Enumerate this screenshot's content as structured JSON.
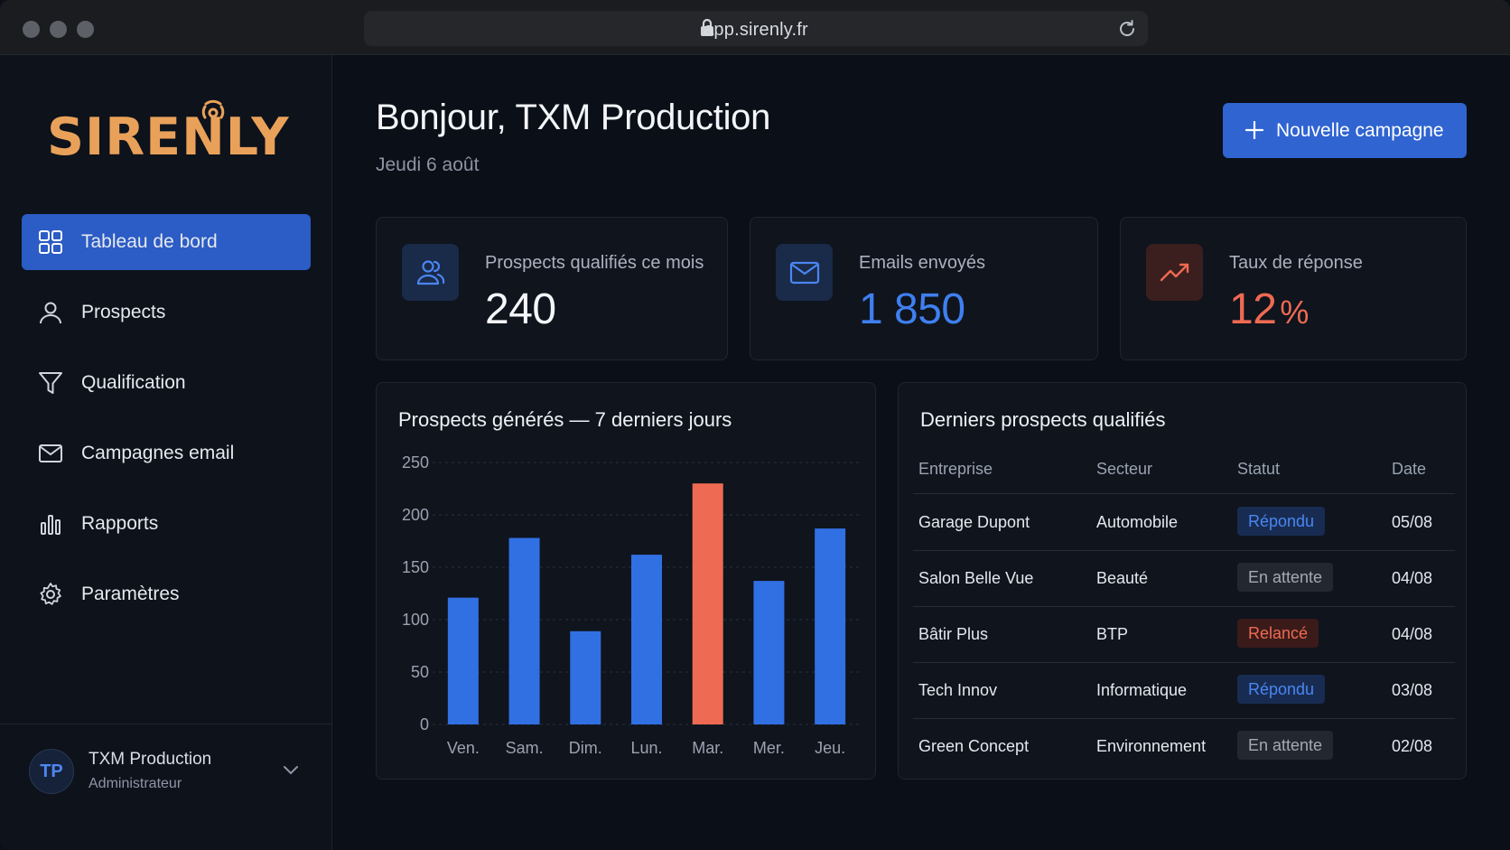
{
  "browser": {
    "url": "app.sirenly.fr"
  },
  "brand": {
    "logo_text": "SIRENLY",
    "accent": "#e9a15a"
  },
  "sidebar": {
    "items": [
      {
        "label": "Tableau de bord",
        "icon": "grid-icon",
        "active": true
      },
      {
        "label": "Prospects",
        "icon": "user-icon"
      },
      {
        "label": "Qualification",
        "icon": "filter-icon"
      },
      {
        "label": "Campagnes email",
        "icon": "mail-icon"
      },
      {
        "label": "Rapports",
        "icon": "bar-chart-icon"
      },
      {
        "label": "Paramètres",
        "icon": "gear-icon"
      }
    ],
    "user": {
      "initials": "TP",
      "name": "TXM Production",
      "role": "Administrateur"
    }
  },
  "header": {
    "greeting": "Bonjour, TXM Production",
    "date": "Jeudi 6 août",
    "new_campaign_label": "Nouvelle campagne"
  },
  "stats": [
    {
      "label": "Prospects qualifiés ce mois",
      "value": "240",
      "icon": "users-icon"
    },
    {
      "label": "Emails envoyés",
      "value": "1 850",
      "icon": "mail-icon"
    },
    {
      "label": "Taux de réponse",
      "value": "12",
      "unit": "%",
      "icon": "trending-up-icon"
    }
  ],
  "chart_panel": {
    "title": "Prospects générés — 7 derniers jours"
  },
  "chart_data": {
    "type": "bar",
    "title": "Prospects générés — 7 derniers jours",
    "categories": [
      "Ven.",
      "Sam.",
      "Dim.",
      "Lun.",
      "Mar.",
      "Mer.",
      "Jeu."
    ],
    "values": [
      121,
      178,
      89,
      162,
      230,
      137,
      187
    ],
    "highlight_index": 4,
    "colors": {
      "bar": "#3170e2",
      "highlight": "#ef6a52"
    },
    "ylim": [
      0,
      250
    ],
    "yticks": [
      0,
      50,
      100,
      150,
      200,
      250
    ],
    "grid": true
  },
  "table": {
    "title": "Derniers prospects qualifiés",
    "columns": [
      "Entreprise",
      "Secteur",
      "Statut",
      "Date"
    ],
    "rows": [
      {
        "company": "Garage Dupont",
        "sector": "Automobile",
        "status": "Répondu",
        "status_kind": "rep",
        "date": "05/08"
      },
      {
        "company": "Salon Belle Vue",
        "sector": "Beauté",
        "status": "En attente",
        "status_kind": "att",
        "date": "04/08"
      },
      {
        "company": "Bâtir Plus",
        "sector": "BTP",
        "status": "Relancé",
        "status_kind": "rel",
        "date": "04/08"
      },
      {
        "company": "Tech Innov",
        "sector": "Informatique",
        "status": "Répondu",
        "status_kind": "rep",
        "date": "03/08"
      },
      {
        "company": "Green Concept",
        "sector": "Environnement",
        "status": "En attente",
        "status_kind": "att",
        "date": "02/08"
      }
    ]
  }
}
